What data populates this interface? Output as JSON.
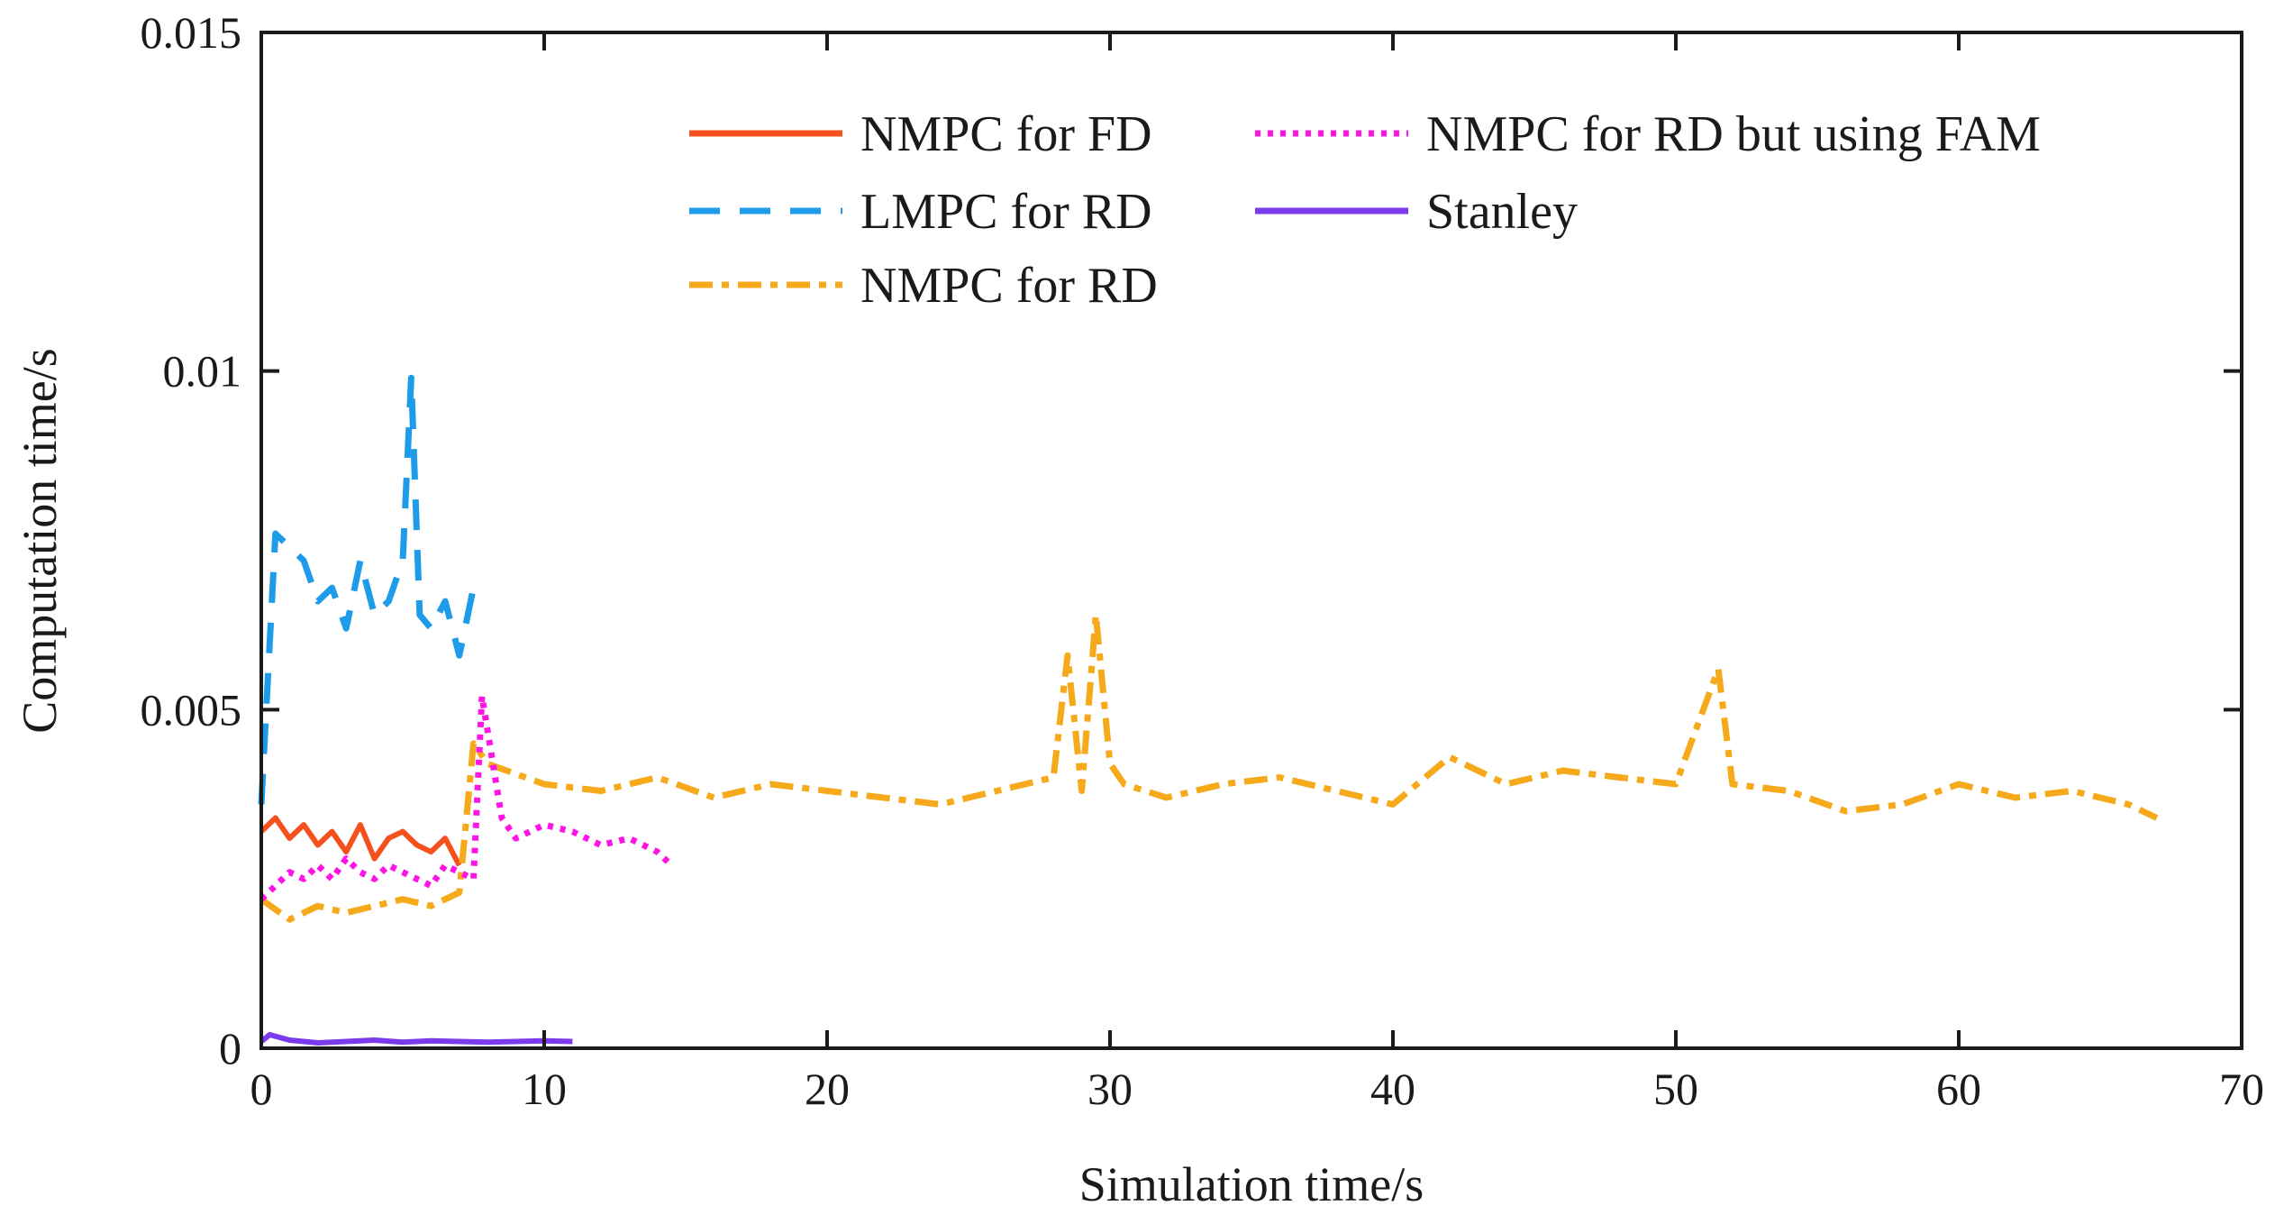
{
  "chart_data": {
    "type": "line",
    "title": "",
    "xlabel": "Simulation time/s",
    "ylabel": "Computation time/s",
    "xlim": [
      0,
      70
    ],
    "ylim": [
      0,
      0.015
    ],
    "xticks": [
      0,
      10,
      20,
      30,
      40,
      50,
      60,
      70
    ],
    "xtick_labels": [
      "0",
      "10",
      "20",
      "30",
      "40",
      "50",
      "60",
      "70"
    ],
    "yticks": [
      0,
      0.005,
      0.01,
      0.015
    ],
    "ytick_labels": [
      "0",
      "0.005",
      "0.01",
      "0.015"
    ],
    "grid": false,
    "legend_position": "top-right",
    "series": [
      {
        "name": "NMPC for FD",
        "color": "#f4511e",
        "style": "solid",
        "x": [
          0,
          0.5,
          1,
          1.5,
          2,
          2.5,
          3,
          3.5,
          4,
          4.5,
          5,
          5.5,
          6,
          6.5,
          7
        ],
        "values": [
          0.0032,
          0.0034,
          0.0031,
          0.0033,
          0.003,
          0.0032,
          0.0029,
          0.0033,
          0.0028,
          0.0031,
          0.0032,
          0.003,
          0.0029,
          0.0031,
          0.0027
        ]
      },
      {
        "name": "LMPC for RD",
        "color": "#1e9be9",
        "style": "dashed",
        "x": [
          0,
          0.5,
          1,
          1.5,
          2,
          2.5,
          3,
          3.5,
          4,
          4.5,
          5,
          5.3,
          5.6,
          6,
          6.5,
          7,
          7.5
        ],
        "values": [
          0.0036,
          0.0076,
          0.0074,
          0.0072,
          0.0066,
          0.0068,
          0.0062,
          0.0072,
          0.0064,
          0.0066,
          0.0072,
          0.0099,
          0.0064,
          0.0062,
          0.0066,
          0.0058,
          0.0068
        ]
      },
      {
        "name": "NMPC for RD",
        "color": "#f6a91b",
        "style": "dashdot",
        "x": [
          0,
          1,
          2,
          3,
          4,
          5,
          6,
          7,
          7.5,
          8,
          10,
          12,
          14,
          16,
          18,
          20,
          22,
          24,
          26,
          28,
          28.5,
          29,
          29.5,
          30,
          30.5,
          32,
          34,
          36,
          38,
          40,
          42,
          44,
          46,
          48,
          50,
          51.5,
          52,
          54,
          56,
          58,
          60,
          62,
          64,
          66,
          67
        ],
        "values": [
          0.0022,
          0.0019,
          0.0021,
          0.002,
          0.0021,
          0.0022,
          0.0021,
          0.0023,
          0.0045,
          0.0042,
          0.0039,
          0.0038,
          0.004,
          0.0037,
          0.0039,
          0.0038,
          0.0037,
          0.0036,
          0.0038,
          0.004,
          0.0058,
          0.0038,
          0.0064,
          0.0042,
          0.0039,
          0.0037,
          0.0039,
          0.004,
          0.0038,
          0.0036,
          0.0043,
          0.0039,
          0.0041,
          0.004,
          0.0039,
          0.0056,
          0.0039,
          0.0038,
          0.0035,
          0.0036,
          0.0039,
          0.0037,
          0.0038,
          0.0036,
          0.0034
        ]
      },
      {
        "name": "NMPC for RD but using FAM",
        "color": "#ff14e6",
        "style": "dotted",
        "x": [
          0,
          0.5,
          1,
          1.5,
          2,
          2.5,
          3,
          3.5,
          4,
          4.5,
          5,
          5.5,
          6,
          6.5,
          7,
          7.5,
          7.8,
          8.5,
          9,
          10,
          11,
          12,
          13,
          14,
          14.5
        ],
        "values": [
          0.0022,
          0.0024,
          0.0026,
          0.0025,
          0.0027,
          0.0025,
          0.0028,
          0.0026,
          0.0025,
          0.0027,
          0.0026,
          0.0025,
          0.0024,
          0.0027,
          0.0026,
          0.0025,
          0.0052,
          0.0034,
          0.0031,
          0.0033,
          0.0032,
          0.003,
          0.0031,
          0.0029,
          0.0027
        ]
      },
      {
        "name": "Stanley",
        "color": "#7c3aed",
        "style": "solid",
        "x": [
          0,
          0.3,
          1,
          2,
          3,
          4,
          5,
          6,
          7,
          8,
          9,
          10,
          11
        ],
        "values": [
          0.0001,
          0.0002,
          0.00012,
          8e-05,
          0.0001,
          0.00012,
          9e-05,
          0.00011,
          0.0001,
          9e-05,
          0.0001,
          0.00011,
          0.0001
        ]
      }
    ]
  }
}
